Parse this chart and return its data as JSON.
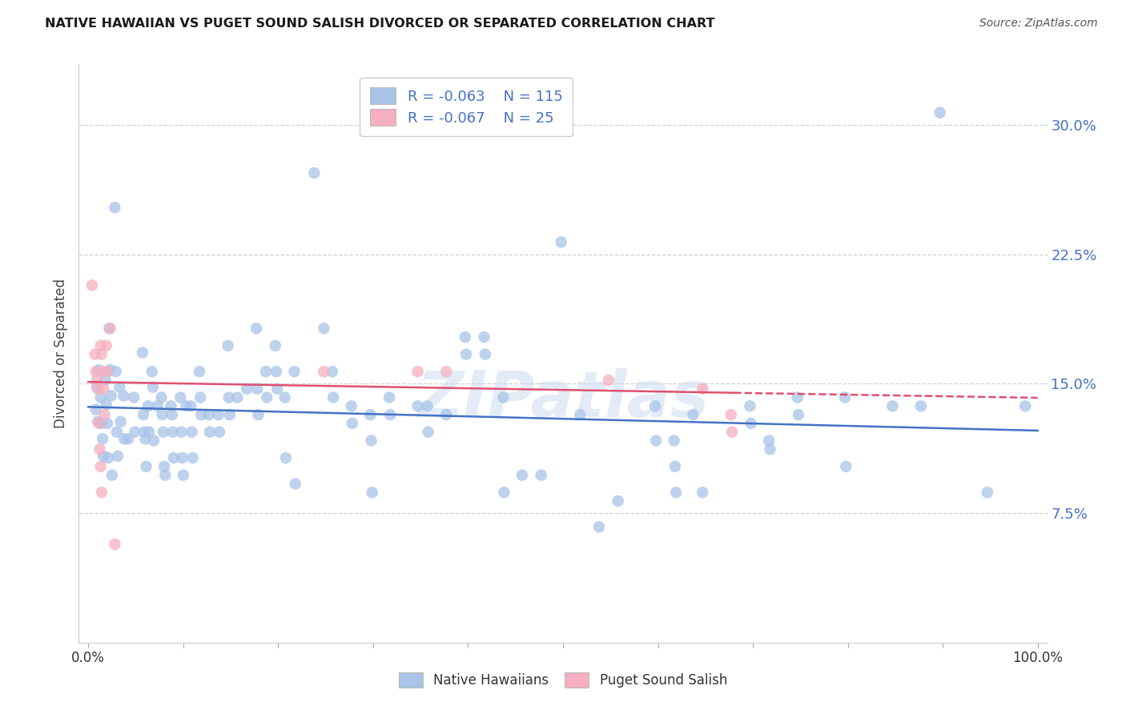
{
  "title": "NATIVE HAWAIIAN VS PUGET SOUND SALISH DIVORCED OR SEPARATED CORRELATION CHART",
  "source": "Source: ZipAtlas.com",
  "ylabel": "Divorced or Separated",
  "xlim": [
    -0.01,
    1.01
  ],
  "ylim": [
    0.0,
    0.335
  ],
  "yticks": [
    0.075,
    0.15,
    0.225,
    0.3
  ],
  "ytick_labels": [
    "7.5%",
    "15.0%",
    "22.5%",
    "30.0%"
  ],
  "xticks": [
    0.0,
    0.1,
    0.2,
    0.3,
    0.4,
    0.5,
    0.6,
    0.7,
    0.8,
    0.9,
    1.0
  ],
  "xtick_labels": [
    "0.0%",
    "",
    "",
    "",
    "",
    "",
    "",
    "",
    "",
    "",
    "100.0%"
  ],
  "legend_labels": [
    "Native Hawaiians",
    "Puget Sound Salish"
  ],
  "blue_R": "-0.063",
  "blue_N": "115",
  "pink_R": "-0.067",
  "pink_N": "25",
  "blue_color": "#a8c4e8",
  "pink_color": "#f5afc0",
  "blue_line_color": "#4472c4",
  "pink_line_color": "#e05070",
  "blue_scatter": [
    [
      0.008,
      0.135
    ],
    [
      0.009,
      0.148
    ],
    [
      0.01,
      0.128
    ],
    [
      0.011,
      0.158
    ],
    [
      0.013,
      0.142
    ],
    [
      0.014,
      0.127
    ],
    [
      0.015,
      0.118
    ],
    [
      0.016,
      0.108
    ],
    [
      0.018,
      0.152
    ],
    [
      0.019,
      0.138
    ],
    [
      0.02,
      0.127
    ],
    [
      0.021,
      0.107
    ],
    [
      0.022,
      0.182
    ],
    [
      0.023,
      0.158
    ],
    [
      0.024,
      0.143
    ],
    [
      0.025,
      0.097
    ],
    [
      0.028,
      0.252
    ],
    [
      0.029,
      0.157
    ],
    [
      0.03,
      0.122
    ],
    [
      0.031,
      0.108
    ],
    [
      0.033,
      0.148
    ],
    [
      0.034,
      0.128
    ],
    [
      0.037,
      0.143
    ],
    [
      0.038,
      0.118
    ],
    [
      0.042,
      0.118
    ],
    [
      0.048,
      0.142
    ],
    [
      0.049,
      0.122
    ],
    [
      0.057,
      0.168
    ],
    [
      0.058,
      0.132
    ],
    [
      0.059,
      0.122
    ],
    [
      0.06,
      0.118
    ],
    [
      0.061,
      0.102
    ],
    [
      0.063,
      0.137
    ],
    [
      0.064,
      0.122
    ],
    [
      0.067,
      0.157
    ],
    [
      0.068,
      0.148
    ],
    [
      0.069,
      0.117
    ],
    [
      0.073,
      0.137
    ],
    [
      0.077,
      0.142
    ],
    [
      0.078,
      0.132
    ],
    [
      0.079,
      0.122
    ],
    [
      0.08,
      0.102
    ],
    [
      0.081,
      0.097
    ],
    [
      0.087,
      0.137
    ],
    [
      0.088,
      0.132
    ],
    [
      0.089,
      0.122
    ],
    [
      0.09,
      0.107
    ],
    [
      0.097,
      0.142
    ],
    [
      0.098,
      0.122
    ],
    [
      0.099,
      0.107
    ],
    [
      0.1,
      0.097
    ],
    [
      0.103,
      0.137
    ],
    [
      0.108,
      0.137
    ],
    [
      0.109,
      0.122
    ],
    [
      0.11,
      0.107
    ],
    [
      0.117,
      0.157
    ],
    [
      0.118,
      0.142
    ],
    [
      0.119,
      0.132
    ],
    [
      0.127,
      0.132
    ],
    [
      0.128,
      0.122
    ],
    [
      0.137,
      0.132
    ],
    [
      0.138,
      0.122
    ],
    [
      0.147,
      0.172
    ],
    [
      0.148,
      0.142
    ],
    [
      0.149,
      0.132
    ],
    [
      0.157,
      0.142
    ],
    [
      0.167,
      0.147
    ],
    [
      0.177,
      0.182
    ],
    [
      0.178,
      0.147
    ],
    [
      0.179,
      0.132
    ],
    [
      0.187,
      0.157
    ],
    [
      0.188,
      0.142
    ],
    [
      0.197,
      0.172
    ],
    [
      0.198,
      0.157
    ],
    [
      0.199,
      0.147
    ],
    [
      0.207,
      0.142
    ],
    [
      0.208,
      0.107
    ],
    [
      0.217,
      0.157
    ],
    [
      0.218,
      0.092
    ],
    [
      0.238,
      0.272
    ],
    [
      0.248,
      0.182
    ],
    [
      0.257,
      0.157
    ],
    [
      0.258,
      0.142
    ],
    [
      0.277,
      0.137
    ],
    [
      0.278,
      0.127
    ],
    [
      0.297,
      0.132
    ],
    [
      0.298,
      0.117
    ],
    [
      0.299,
      0.087
    ],
    [
      0.317,
      0.142
    ],
    [
      0.318,
      0.132
    ],
    [
      0.347,
      0.137
    ],
    [
      0.357,
      0.137
    ],
    [
      0.358,
      0.122
    ],
    [
      0.377,
      0.132
    ],
    [
      0.397,
      0.177
    ],
    [
      0.398,
      0.167
    ],
    [
      0.417,
      0.177
    ],
    [
      0.418,
      0.167
    ],
    [
      0.437,
      0.142
    ],
    [
      0.438,
      0.087
    ],
    [
      0.457,
      0.097
    ],
    [
      0.477,
      0.097
    ],
    [
      0.498,
      0.232
    ],
    [
      0.518,
      0.132
    ],
    [
      0.538,
      0.067
    ],
    [
      0.558,
      0.082
    ],
    [
      0.597,
      0.137
    ],
    [
      0.598,
      0.117
    ],
    [
      0.617,
      0.117
    ],
    [
      0.618,
      0.102
    ],
    [
      0.619,
      0.087
    ],
    [
      0.637,
      0.132
    ],
    [
      0.647,
      0.087
    ],
    [
      0.697,
      0.137
    ],
    [
      0.698,
      0.127
    ],
    [
      0.717,
      0.117
    ],
    [
      0.718,
      0.112
    ],
    [
      0.747,
      0.142
    ],
    [
      0.748,
      0.132
    ],
    [
      0.797,
      0.142
    ],
    [
      0.798,
      0.102
    ],
    [
      0.847,
      0.137
    ],
    [
      0.877,
      0.137
    ],
    [
      0.897,
      0.307
    ],
    [
      0.947,
      0.087
    ],
    [
      0.987,
      0.137
    ]
  ],
  "pink_scatter": [
    [
      0.004,
      0.207
    ],
    [
      0.007,
      0.167
    ],
    [
      0.008,
      0.157
    ],
    [
      0.009,
      0.152
    ],
    [
      0.01,
      0.147
    ],
    [
      0.011,
      0.127
    ],
    [
      0.012,
      0.112
    ],
    [
      0.013,
      0.102
    ],
    [
      0.014,
      0.087
    ],
    [
      0.013,
      0.172
    ],
    [
      0.014,
      0.167
    ],
    [
      0.015,
      0.157
    ],
    [
      0.016,
      0.147
    ],
    [
      0.017,
      0.132
    ],
    [
      0.019,
      0.172
    ],
    [
      0.02,
      0.157
    ],
    [
      0.023,
      0.182
    ],
    [
      0.028,
      0.057
    ],
    [
      0.248,
      0.157
    ],
    [
      0.347,
      0.157
    ],
    [
      0.377,
      0.157
    ],
    [
      0.548,
      0.152
    ],
    [
      0.647,
      0.147
    ],
    [
      0.677,
      0.132
    ],
    [
      0.678,
      0.122
    ]
  ],
  "blue_trend": {
    "x_start": 0.0,
    "x_end": 1.0,
    "y_start": 0.1365,
    "y_end": 0.1228
  },
  "pink_trend_solid": {
    "x_start": 0.0,
    "x_end": 0.68,
    "y_start": 0.151,
    "y_end": 0.1447
  },
  "pink_trend_dashed": {
    "x_start": 0.68,
    "x_end": 1.0,
    "y_start": 0.1447,
    "y_end": 0.1418
  },
  "watermark": "ZIPatlas",
  "background_color": "#ffffff",
  "grid_color": "#d0d0d0"
}
